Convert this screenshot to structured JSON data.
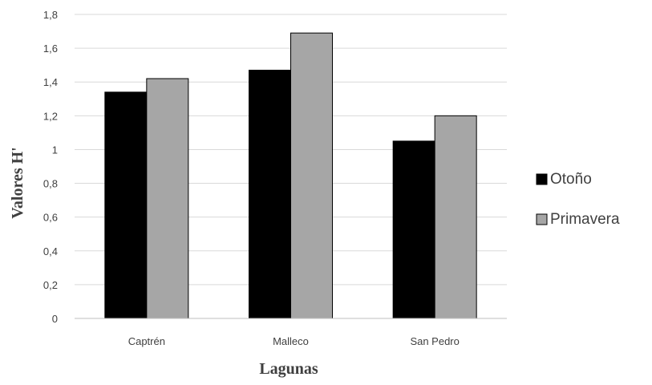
{
  "chart_data": {
    "type": "bar",
    "title": "",
    "xlabel": "Lagunas",
    "ylabel": "Valores H'",
    "categories": [
      "Captrén",
      "Malleco",
      "San Pedro"
    ],
    "series": [
      {
        "name": "Otoño",
        "values": [
          1.34,
          1.47,
          1.05
        ],
        "color": "#000000"
      },
      {
        "name": "Primavera",
        "values": [
          1.42,
          1.69,
          1.2
        ],
        "color": "#a6a6a6"
      }
    ],
    "ylim": [
      0,
      1.8
    ],
    "yticks": [
      "0",
      "0,2",
      "0,4",
      "0,6",
      "0,8",
      "1",
      "1,2",
      "1,4",
      "1,6",
      "1,8"
    ],
    "grid": true,
    "legend_position": "right"
  }
}
